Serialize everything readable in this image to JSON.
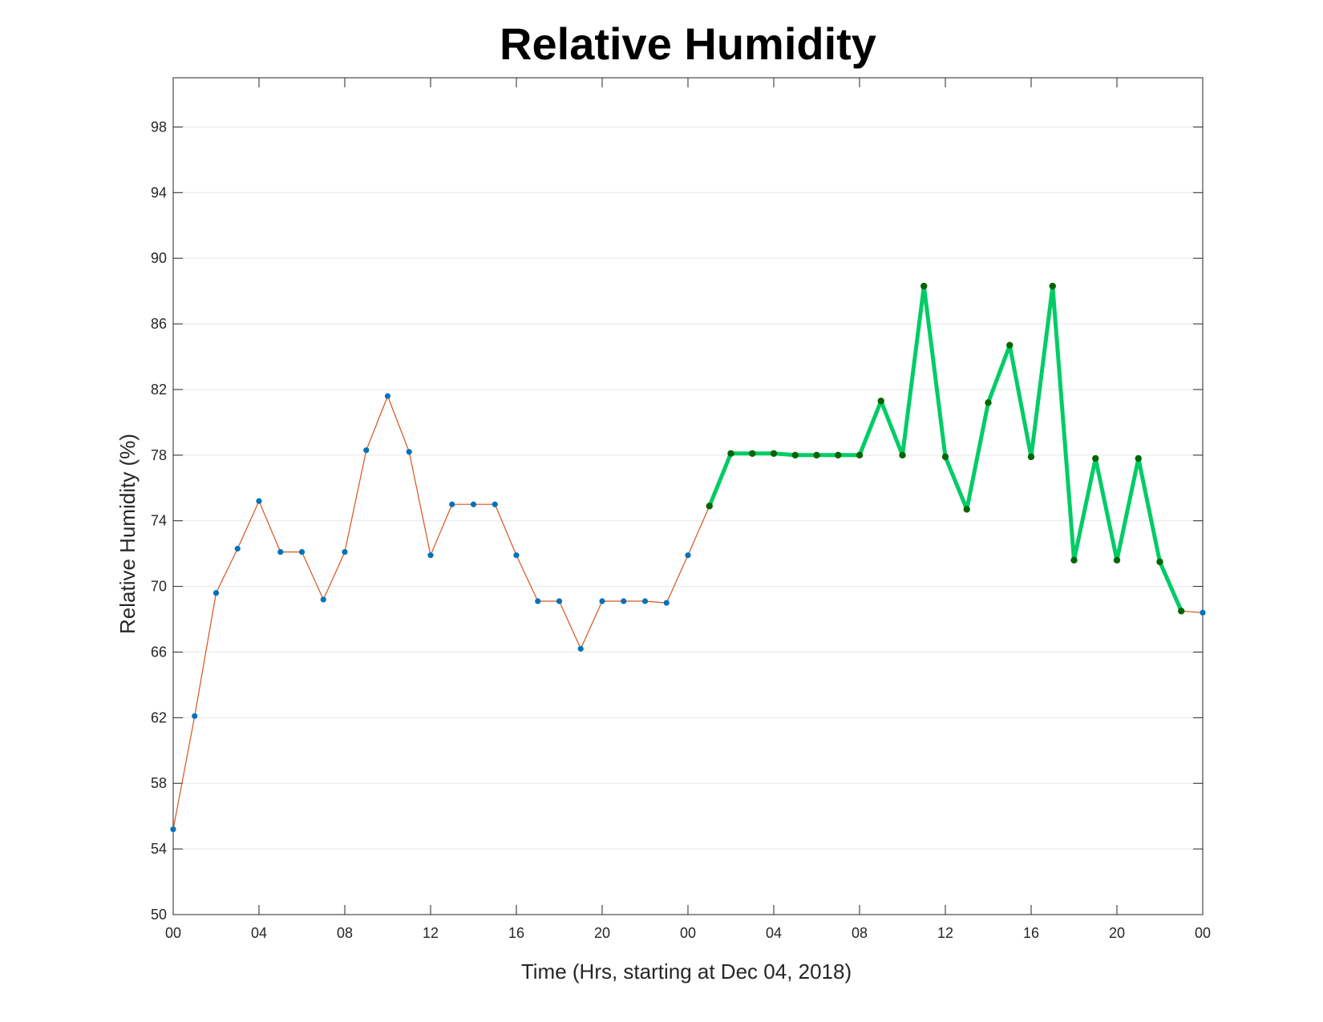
{
  "chart_data": {
    "type": "line",
    "title": "Relative Humidity",
    "xlabel": "Time (Hrs, starting at Dec 04, 2018)",
    "ylabel": "Relative Humidity (%)",
    "ylim": [
      50,
      101
    ],
    "xlim": [
      0,
      48
    ],
    "yticks": [
      50,
      54,
      58,
      62,
      66,
      70,
      74,
      78,
      82,
      86,
      90,
      94,
      98
    ],
    "xticks": [
      {
        "x": 0,
        "label": "00"
      },
      {
        "x": 4,
        "label": "04"
      },
      {
        "x": 8,
        "label": "08"
      },
      {
        "x": 12,
        "label": "12"
      },
      {
        "x": 16,
        "label": "16"
      },
      {
        "x": 20,
        "label": "20"
      },
      {
        "x": 24,
        "label": "00"
      },
      {
        "x": 28,
        "label": "04"
      },
      {
        "x": 32,
        "label": "08"
      },
      {
        "x": 36,
        "label": "12"
      },
      {
        "x": 40,
        "label": "16"
      },
      {
        "x": 44,
        "label": "20"
      },
      {
        "x": 48,
        "label": "00"
      }
    ],
    "grid": "horizontal",
    "series": [
      {
        "color": "#d95319",
        "marker_color": "#0072bd",
        "x": [
          0,
          1,
          2,
          3,
          4,
          5,
          6,
          7,
          8,
          9,
          10,
          11,
          12,
          13,
          14,
          15,
          16,
          17,
          18,
          19,
          20,
          21,
          22,
          23,
          24,
          25,
          26,
          27,
          28,
          29,
          30,
          31,
          32,
          33,
          34,
          35,
          36,
          37,
          38,
          39,
          40,
          41,
          42,
          43,
          44,
          45,
          46,
          47,
          48
        ],
        "values": [
          55.2,
          62.1,
          69.6,
          72.3,
          75.2,
          72.1,
          72.1,
          69.2,
          72.1,
          78.3,
          81.6,
          78.2,
          71.9,
          75.0,
          75.0,
          75.0,
          71.9,
          69.1,
          69.1,
          66.2,
          69.1,
          69.1,
          69.1,
          69.0,
          71.9,
          74.9,
          78.1,
          78.1,
          78.1,
          78.0,
          78.0,
          78.0,
          78.0,
          81.3,
          78.0,
          88.3,
          77.9,
          74.7,
          81.2,
          84.7,
          77.9,
          88.3,
          71.6,
          77.8,
          71.6,
          77.8,
          71.5,
          68.5,
          68.4
        ]
      },
      {
        "color": "#00cc66",
        "marker_color": "#006600",
        "x": [
          25,
          26,
          27,
          28,
          29,
          30,
          31,
          32,
          33,
          34,
          35,
          36,
          37,
          38,
          39,
          40,
          41,
          42,
          43,
          44,
          45,
          46,
          47
        ],
        "values": [
          74.9,
          78.1,
          78.1,
          78.1,
          78.0,
          78.0,
          78.0,
          78.0,
          81.3,
          78.0,
          88.3,
          77.9,
          74.7,
          81.2,
          84.7,
          77.9,
          88.3,
          71.6,
          77.8,
          71.6,
          77.8,
          71.5,
          68.5
        ]
      }
    ]
  }
}
